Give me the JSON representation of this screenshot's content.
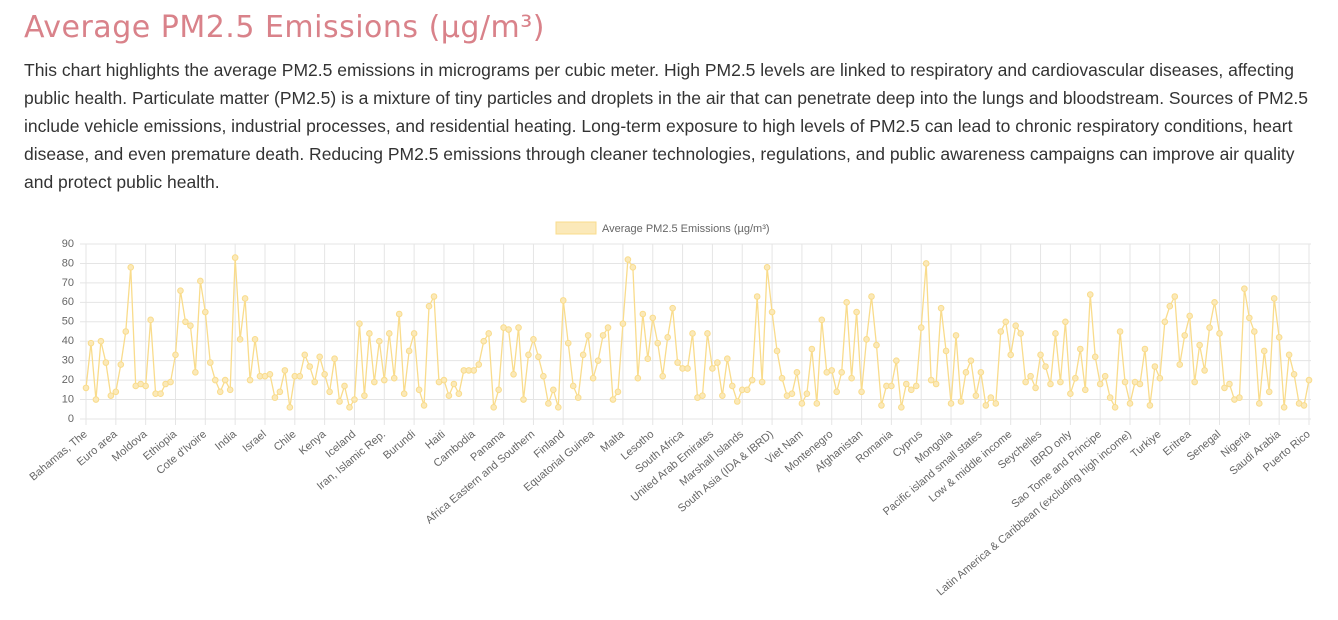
{
  "header": {
    "title": "Average PM2.5 Emissions (µg/m³)",
    "description": "This chart highlights the average PM2.5 emissions in micrograms per cubic meter. High PM2.5 levels are linked to respiratory and cardiovascular diseases, affecting public health. Particulate matter (PM2.5) is a mixture of tiny particles and droplets in the air that can penetrate deep into the lungs and bloodstream. Sources of PM2.5 include vehicle emissions, industrial processes, and residential heating. Long-term exposure to high levels of PM2.5 can lead to chronic respiratory conditions, heart disease, and even premature death. Reducing PM2.5 emissions through cleaner technologies, regulations, and public awareness campaigns can improve air quality and protect public health."
  },
  "chart_data": {
    "type": "line",
    "categories": [
      "Bahamas, The",
      null,
      null,
      null,
      null,
      null,
      "Euro area",
      null,
      null,
      null,
      null,
      null,
      "Moldova",
      null,
      null,
      null,
      null,
      null,
      "Ethiopia",
      null,
      null,
      null,
      null,
      null,
      "Cote d'Ivoire",
      null,
      null,
      null,
      null,
      null,
      "India",
      null,
      null,
      null,
      null,
      null,
      "Israel",
      null,
      null,
      null,
      null,
      null,
      "Chile",
      null,
      null,
      null,
      null,
      null,
      "Kenya",
      null,
      null,
      null,
      null,
      null,
      "Iceland",
      null,
      null,
      null,
      null,
      null,
      "Iran, Islamic Rep.",
      null,
      null,
      null,
      null,
      null,
      "Burundi",
      null,
      null,
      null,
      null,
      null,
      "Haiti",
      null,
      null,
      null,
      null,
      null,
      "Cambodia",
      null,
      null,
      null,
      null,
      null,
      "Panama",
      null,
      null,
      null,
      null,
      null,
      "Africa Eastern and Southern",
      null,
      null,
      null,
      null,
      null,
      "Finland",
      null,
      null,
      null,
      null,
      null,
      "Equatorial Guinea",
      null,
      null,
      null,
      null,
      null,
      "Malta",
      null,
      null,
      null,
      null,
      null,
      "Lesotho",
      null,
      null,
      null,
      null,
      null,
      "South Africa",
      null,
      null,
      null,
      null,
      null,
      "United Arab Emirates",
      null,
      null,
      null,
      null,
      null,
      "Marshall Islands",
      null,
      null,
      null,
      null,
      null,
      "South Asia (IDA & IBRD)",
      null,
      null,
      null,
      null,
      null,
      "Viet Nam",
      null,
      null,
      null,
      null,
      null,
      "Montenegro",
      null,
      null,
      null,
      null,
      null,
      "Afghanistan",
      null,
      null,
      null,
      null,
      null,
      "Romania",
      null,
      null,
      null,
      null,
      null,
      "Cyprus",
      null,
      null,
      null,
      null,
      null,
      "Mongolia",
      null,
      null,
      null,
      null,
      null,
      "Pacific island small states",
      null,
      null,
      null,
      null,
      null,
      "Low & middle income",
      null,
      null,
      null,
      null,
      null,
      "Seychelles",
      null,
      null,
      null,
      null,
      null,
      "IBRD only",
      null,
      null,
      null,
      null,
      null,
      "Sao Tome and Principe",
      null,
      null,
      null,
      null,
      null,
      "Latin America & Caribbean (excluding high income)",
      null,
      null,
      null,
      null,
      null,
      "Turkiye",
      null,
      null,
      null,
      null,
      null,
      "Eritrea",
      null,
      null,
      null,
      null,
      null,
      "Senegal",
      null,
      null,
      null,
      null,
      null,
      "Nigeria",
      null,
      null,
      null,
      null,
      null,
      "Saudi Arabia",
      null,
      null,
      null,
      null,
      null,
      "Puerto Rico"
    ],
    "series": [
      {
        "name": "Average PM2.5 Emissions (µg/m³)",
        "color": "#f9dc8c",
        "values": [
          16,
          39,
          10,
          40,
          29,
          12,
          14,
          28,
          45,
          78,
          17,
          18,
          17,
          51,
          13,
          13,
          18,
          19,
          33,
          66,
          50,
          48,
          24,
          71,
          55,
          29,
          20,
          14,
          20,
          15,
          83,
          41,
          62,
          20,
          41,
          22,
          22,
          23,
          11,
          14,
          25,
          6,
          22,
          22,
          33,
          27,
          19,
          32,
          23,
          14,
          31,
          9,
          17,
          6,
          10,
          49,
          12,
          44,
          19,
          40,
          20,
          44,
          21,
          54,
          13,
          35,
          44,
          15,
          7,
          58,
          63,
          19,
          20,
          12,
          18,
          13,
          25,
          25,
          25,
          28,
          40,
          44,
          6,
          15,
          47,
          46,
          23,
          47,
          10,
          33,
          41,
          32,
          22,
          8,
          15,
          6,
          61,
          39,
          17,
          11,
          33,
          43,
          21,
          30,
          43,
          47,
          10,
          14,
          49,
          82,
          78,
          21,
          54,
          31,
          52,
          39,
          22,
          42,
          57,
          29,
          26,
          26,
          44,
          11,
          12,
          44,
          26,
          29,
          12,
          31,
          17,
          9,
          15,
          15,
          20,
          63,
          19,
          78,
          55,
          35,
          21,
          12,
          13,
          24,
          8,
          13,
          36,
          8,
          51,
          24,
          25,
          14,
          24,
          60,
          21,
          55,
          14,
          41,
          63,
          38,
          7,
          17,
          17,
          30,
          6,
          18,
          15,
          17,
          47,
          80,
          20,
          18,
          57,
          35,
          8,
          43,
          9,
          24,
          30,
          12,
          24,
          7,
          11,
          8,
          45,
          50,
          33,
          48,
          44,
          19,
          22,
          16,
          33,
          27,
          18,
          44,
          19,
          50,
          13,
          21,
          36,
          15,
          64,
          32,
          18,
          22,
          11,
          6,
          45,
          19,
          8,
          19,
          18,
          36,
          7,
          27,
          21,
          50,
          58,
          63,
          28,
          43,
          53,
          19,
          38,
          25,
          47,
          60,
          44,
          16,
          18,
          10,
          11,
          67,
          52,
          45,
          8,
          35,
          14,
          62,
          42,
          6,
          33,
          23,
          8,
          7,
          20
        ]
      }
    ],
    "ylim": [
      0,
      90
    ],
    "yticks": [
      0,
      10,
      20,
      30,
      40,
      50,
      60,
      70,
      80,
      90
    ],
    "grid": true,
    "legend": "top"
  }
}
